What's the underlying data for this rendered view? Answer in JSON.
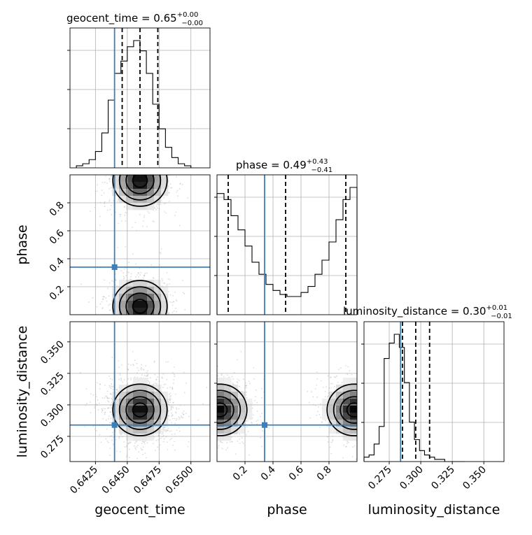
{
  "chart_data": {
    "type": "corner",
    "parameters": [
      "geocent_time",
      "phase",
      "luminosity_distance"
    ],
    "truths": {
      "geocent_time": 0.644,
      "phase": 0.34,
      "luminosity_distance": 0.284
    },
    "ranges": {
      "geocent_time": [
        0.6405,
        0.6515
      ],
      "phase": [
        0.0,
        1.0
      ],
      "luminosity_distance": [
        0.255,
        0.366
      ]
    },
    "titles": [
      {
        "param": "geocent_time",
        "label": "geocent_time = 0.65",
        "sup": "+0.00",
        "sub": "−0.00"
      },
      {
        "param": "phase",
        "label": "phase = 0.49",
        "sup": "+0.43",
        "sub": "−0.41"
      },
      {
        "param": "luminosity_distance",
        "label": "luminosity_distance = 0.30",
        "sup": "+0.01",
        "sub": "−0.01"
      }
    ],
    "axis_labels": {
      "x": [
        "geocent_time",
        "phase",
        "luminosity_distance"
      ],
      "y": [
        "phase",
        "luminosity_distance"
      ]
    },
    "ticks": {
      "geocent_time": [
        "0.6425",
        "0.6450",
        "0.6475",
        "0.6500"
      ],
      "phase": [
        "0.2",
        "0.4",
        "0.6",
        "0.8"
      ],
      "luminosity_distance": [
        "0.275",
        "0.300",
        "0.325",
        "0.350"
      ]
    },
    "quantiles": {
      "geocent_time": [
        0.6446,
        0.646,
        0.6474
      ],
      "phase": [
        0.08,
        0.49,
        0.92
      ],
      "luminosity_distance": [
        0.2855,
        0.296,
        0.307
      ]
    },
    "histograms": {
      "geocent_time": {
        "edges_start": 0.641,
        "bin_width": 0.0005,
        "counts": [
          1,
          2,
          4,
          8,
          17,
          33,
          46,
          52,
          59,
          62,
          57,
          46,
          31,
          19,
          10,
          5,
          2,
          1
        ]
      },
      "phase": {
        "edges_start": 0.0,
        "bin_width": 0.05,
        "counts": [
          60,
          57,
          49,
          42,
          34,
          26,
          20,
          15,
          12,
          10,
          9,
          9,
          11,
          14,
          20,
          27,
          36,
          47,
          57,
          63
        ]
      },
      "luminosity_distance": {
        "edges_start": 0.255,
        "bin_width": 0.004,
        "counts": [
          2,
          3,
          8,
          16,
          47,
          54,
          58,
          52,
          36,
          18,
          10,
          5,
          3,
          2,
          1,
          1,
          0,
          0,
          0,
          0
        ]
      }
    },
    "posterior_modes": {
      "geocent_time_vs_phase": [
        {
          "x": 0.646,
          "y": 0.96
        },
        {
          "x": 0.646,
          "y": 0.06
        }
      ],
      "geocent_time_vs_luminosity_distance": [
        {
          "x": 0.646,
          "y": 0.296
        }
      ],
      "phase_vs_luminosity_distance": [
        {
          "x": 0.02,
          "y": 0.296
        },
        {
          "x": 0.98,
          "y": 0.296
        }
      ]
    },
    "grid": true,
    "colors": {
      "truth": "#3f7fb8",
      "line": "#000000",
      "scatter": "#9a9a9a"
    }
  }
}
